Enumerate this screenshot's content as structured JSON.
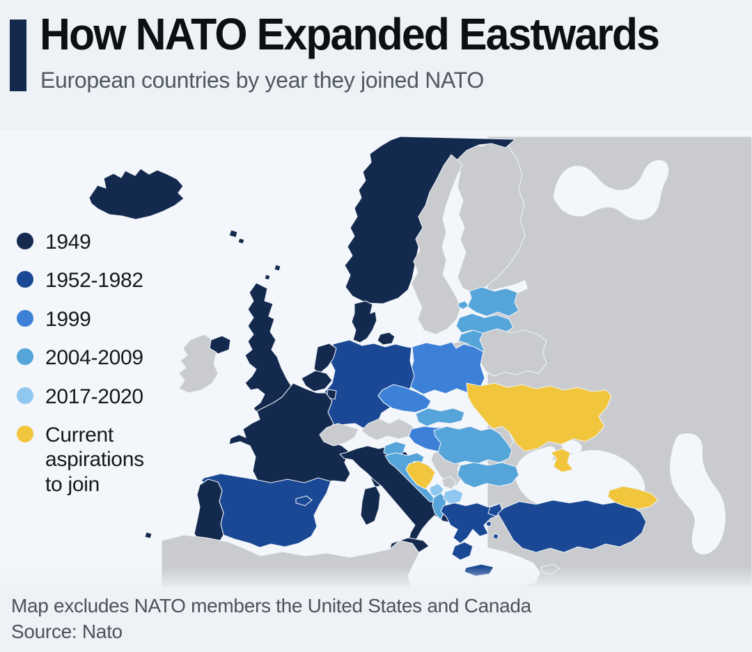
{
  "page": {
    "background": "#eef1f6",
    "accent_bar_color": "#14294d"
  },
  "header": {
    "title": "How NATO Expanded Eastwards",
    "subtitle": "European countries by year they joined NATO"
  },
  "legend": {
    "items": [
      {
        "key": "y1949",
        "label": "1949",
        "color": "#13294e"
      },
      {
        "key": "y1952_1982",
        "label": "1952-1982",
        "color": "#1a4894"
      },
      {
        "key": "y1999",
        "label": "1999",
        "color": "#3c80d8"
      },
      {
        "key": "y2004_2009",
        "label": "2004-2009",
        "color": "#55a4da"
      },
      {
        "key": "y2017_2020",
        "label": "2017-2020",
        "color": "#8fc7f0"
      },
      {
        "key": "aspirations",
        "label": "Current aspirations to join",
        "color": "#f1c63c"
      }
    ]
  },
  "footnote": {
    "line1": "Map excludes NATO members the United States and Canada",
    "line2": "Source: Nato"
  },
  "map": {
    "non_member_color": "#c9cbce",
    "sea_color": "#f3f6fa",
    "border_color": "#eff3f8",
    "bottom_fade_color": "#eef1f6",
    "memberships": {
      "Iceland": "y1949",
      "Norway": "y1949",
      "United Kingdom": "y1949",
      "Denmark": "y1949",
      "Netherlands": "y1949",
      "Belgium": "y1949",
      "Luxembourg": "y1949",
      "France": "y1949",
      "Portugal": "y1949",
      "Italy": "y1949",
      "Germany": "y1952_1982",
      "Spain": "y1952_1982",
      "Greece": "y1952_1982",
      "Turkey": "y1952_1982",
      "Poland": "y1999",
      "Czechia": "y1999",
      "Hungary": "y1999",
      "Estonia": "y2004_2009",
      "Latvia": "y2004_2009",
      "Lithuania": "y2004_2009",
      "Slovakia": "y2004_2009",
      "Slovenia": "y2004_2009",
      "Croatia": "y2004_2009",
      "Romania": "y2004_2009",
      "Bulgaria": "y2004_2009",
      "Albania": "y2004_2009",
      "Montenegro": "y2017_2020",
      "North Macedonia": "y2017_2020",
      "Ukraine": "aspirations",
      "Georgia": "aspirations",
      "Bosnia and Herzegovina": "aspirations",
      "Ireland": "non_member",
      "Sweden": "non_member",
      "Finland": "non_member",
      "Russia": "non_member",
      "Belarus": "non_member",
      "Moldova": "non_member",
      "Switzerland": "non_member",
      "Austria": "non_member",
      "Serbia": "non_member",
      "Kosovo": "non_member",
      "Cyprus": "non_member",
      "North Africa": "non_member",
      "Caucasus states": "non_member"
    }
  }
}
